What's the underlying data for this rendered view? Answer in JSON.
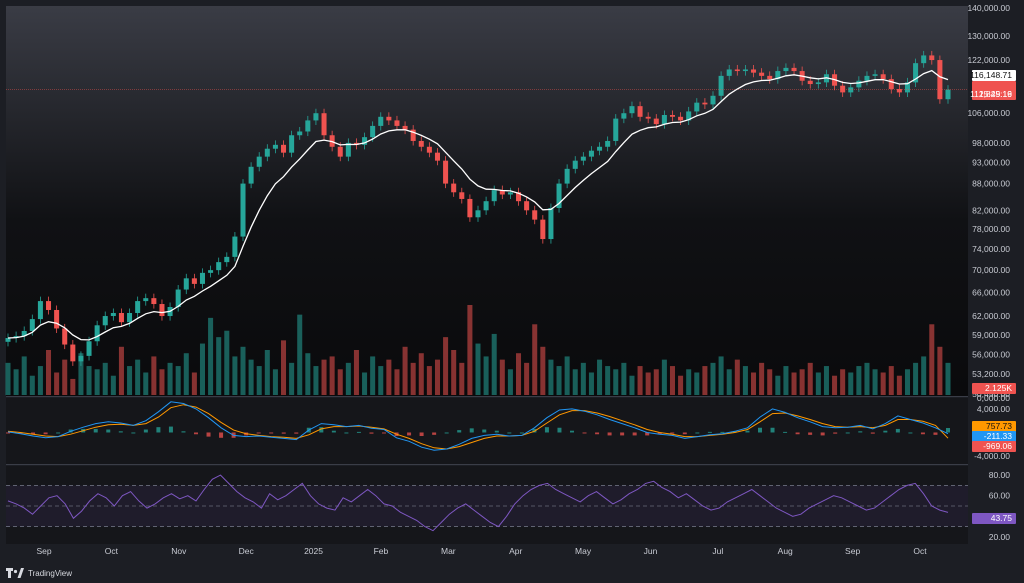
{
  "brand": {
    "name": "TradingView",
    "logo_icon": "tradingview-logo-icon"
  },
  "colors": {
    "up": "#26a69a",
    "down": "#ef5350",
    "ma": "#ffffff",
    "macd": "#2196f3",
    "signal": "#ff9800",
    "rsi": "#7e57c2"
  },
  "chart_data": [
    {
      "type": "candlestick",
      "title": "",
      "price_axis": {
        "scale": "log",
        "ylim": [
          50450,
          140000
        ],
        "ticks": [
          "140,000.00",
          "130,000.00",
          "122,000.00",
          "106,000.00",
          "98,000.00",
          "93,000.00",
          "88,000.00",
          "82,000.00",
          "78,000.00",
          "74,000.00",
          "70,000.00",
          "66,000.00",
          "62,000.00",
          "59,000.00",
          "56,000.00",
          "53,200.00",
          "50,450.00"
        ],
        "tick_values": [
          140000,
          130000,
          122000,
          106000,
          98000,
          93000,
          88000,
          82000,
          78000,
          74000,
          70000,
          66000,
          62000,
          59000,
          56000,
          53200,
          50450
        ]
      },
      "x_axis": {
        "months": [
          "Sep",
          "Oct",
          "Nov",
          "Dec",
          "2025",
          "Feb",
          "Mar",
          "Apr",
          "May",
          "Jun",
          "Jul",
          "Aug",
          "Sep",
          "Oct"
        ]
      },
      "close_series": [
        58500,
        58800,
        59600,
        61500,
        64500,
        63000,
        60000,
        57500,
        55000,
        55800,
        58000,
        60500,
        62000,
        62500,
        61000,
        62500,
        64500,
        65000,
        64000,
        62000,
        63500,
        66500,
        68500,
        67500,
        69500,
        70000,
        71500,
        72500,
        76500,
        88000,
        92000,
        94500,
        96500,
        97500,
        95500,
        100000,
        101000,
        104000,
        106000,
        100000,
        97000,
        94500,
        98000,
        97500,
        99500,
        102500,
        105000,
        104000,
        102500,
        101500,
        98500,
        97000,
        95500,
        93500,
        88000,
        86000,
        84500,
        80500,
        82000,
        84000,
        86500,
        85500,
        86000,
        84000,
        82000,
        80000,
        76000,
        82500,
        88000,
        91500,
        93500,
        94500,
        96000,
        97000,
        98500,
        104500,
        106000,
        108000,
        105000,
        104500,
        103000,
        105500,
        105000,
        104000,
        106500,
        109000,
        108500,
        111000,
        117000,
        119000,
        118500,
        119000,
        118000,
        117000,
        116000,
        118500,
        119500,
        118500,
        115500,
        114500,
        115000,
        117500,
        114000,
        112000,
        113500,
        115500,
        117000,
        117500,
        116000,
        113000,
        112000,
        115000,
        121000,
        123500,
        122000,
        110000,
        112829.16
      ],
      "moving_average": {
        "last_value": 116148.71
      },
      "last_price": 112829.16,
      "countdown": "15:45:19",
      "volume_axis": {
        "ticks": [
          "0,000.00"
        ],
        "last_volume_label": "2.125K"
      },
      "volume_series": [
        1.0,
        0.8,
        1.2,
        0.6,
        0.9,
        1.4,
        0.7,
        1.1,
        0.5,
        1.3,
        0.9,
        0.8,
        1.0,
        0.6,
        1.5,
        0.9,
        1.1,
        0.7,
        1.2,
        0.8,
        1.0,
        0.9,
        1.3,
        0.7,
        1.6,
        2.4,
        1.8,
        2.0,
        1.2,
        1.5,
        1.1,
        0.9,
        1.4,
        0.8,
        1.7,
        1.0,
        2.5,
        1.3,
        0.9,
        1.1,
        1.2,
        0.8,
        1.0,
        1.4,
        0.7,
        1.2,
        0.9,
        1.1,
        0.8,
        1.5,
        1.0,
        1.3,
        0.9,
        1.1,
        1.8,
        1.4,
        1.0,
        2.8,
        1.6,
        1.2,
        1.9,
        1.1,
        0.8,
        1.3,
        1.0,
        2.2,
        1.5,
        1.1,
        0.9,
        1.2,
        0.8,
        1.0,
        0.7,
        1.1,
        0.9,
        0.8,
        1.0,
        0.6,
        0.9,
        0.7,
        0.8,
        1.1,
        0.9,
        0.6,
        0.8,
        0.7,
        0.9,
        1.0,
        1.2,
        0.8,
        1.1,
        0.9,
        0.7,
        1.0,
        0.8,
        0.6,
        0.9,
        0.7,
        0.8,
        1.0,
        0.7,
        0.9,
        0.6,
        0.8,
        0.7,
        0.9,
        1.0,
        0.8,
        0.7,
        0.9,
        0.6,
        0.8,
        1.0,
        1.2,
        2.2,
        1.5,
        1.0
      ]
    },
    {
      "type": "macd",
      "ticks": [
        "4,000.00",
        "-4,000.00"
      ],
      "tick_values": [
        4000,
        -4000
      ],
      "ylim": [
        -5000,
        5500
      ],
      "last_values": {
        "histogram": "757.73",
        "macd": "-211.33",
        "signal": "-969.06"
      },
      "macd_series": [
        100,
        -200,
        -600,
        -900,
        -700,
        200,
        900,
        1500,
        1800,
        1600,
        1200,
        2000,
        3500,
        5200,
        4900,
        4000,
        2500,
        800,
        -500,
        -700,
        -600,
        -800,
        -1000,
        -1200,
        400,
        1500,
        1300,
        1000,
        1200,
        700,
        500,
        -900,
        -1500,
        -2500,
        -3000,
        -2800,
        -2000,
        -1000,
        -500,
        -300,
        -600,
        -500,
        800,
        2500,
        3800,
        4000,
        3600,
        3000,
        2200,
        1500,
        800,
        0,
        -300,
        -500,
        -1000,
        -700,
        -400,
        -200,
        200,
        800,
        2600,
        4000,
        3400,
        2500,
        1800,
        1000,
        800,
        900,
        1200,
        600,
        1500,
        2800,
        2200,
        1600,
        800,
        -211
      ],
      "signal_series": [
        200,
        0,
        -300,
        -600,
        -700,
        -300,
        300,
        900,
        1300,
        1400,
        1200,
        1500,
        2600,
        4200,
        4700,
        4300,
        3200,
        1700,
        400,
        -200,
        -500,
        -700,
        -800,
        -1000,
        -400,
        600,
        1000,
        1000,
        1100,
        900,
        600,
        -300,
        -1000,
        -1900,
        -2600,
        -2800,
        -2400,
        -1700,
        -1000,
        -600,
        -600,
        -500,
        200,
        1600,
        3000,
        3700,
        3700,
        3300,
        2700,
        2000,
        1300,
        500,
        0,
        -300,
        -700,
        -700,
        -500,
        -300,
        0,
        500,
        1800,
        3200,
        3300,
        2800,
        2200,
        1500,
        1000,
        900,
        1000,
        800,
        1200,
        2200,
        2200,
        1900,
        1200,
        -969
      ]
    },
    {
      "type": "rsi",
      "ticks": [
        "80.00",
        "60.00",
        "40.00",
        "20.00"
      ],
      "tick_values": [
        80,
        60,
        40,
        20
      ],
      "ylim": [
        15,
        85
      ],
      "bands": [
        70,
        50,
        30
      ],
      "last_value": "43.75",
      "series": [
        55,
        52,
        48,
        42,
        50,
        58,
        60,
        52,
        38,
        45,
        55,
        62,
        58,
        50,
        60,
        64,
        55,
        48,
        52,
        58,
        62,
        57,
        60,
        55,
        66,
        76,
        80,
        72,
        64,
        58,
        54,
        48,
        62,
        56,
        60,
        66,
        72,
        60,
        52,
        48,
        46,
        58,
        54,
        60,
        66,
        60,
        52,
        50,
        44,
        40,
        36,
        30,
        26,
        34,
        42,
        48,
        52,
        46,
        40,
        34,
        30,
        40,
        52,
        60,
        66,
        70,
        72,
        66,
        62,
        58,
        54,
        60,
        64,
        58,
        52,
        56,
        62,
        66,
        72,
        74,
        68,
        64,
        58,
        62,
        56,
        50,
        46,
        48,
        54,
        58,
        62,
        66,
        60,
        54,
        48,
        44,
        40,
        42,
        48,
        52,
        56,
        60,
        58,
        54,
        50,
        46,
        48,
        54,
        60,
        66,
        70,
        72,
        62,
        50,
        46,
        43.75
      ]
    }
  ]
}
